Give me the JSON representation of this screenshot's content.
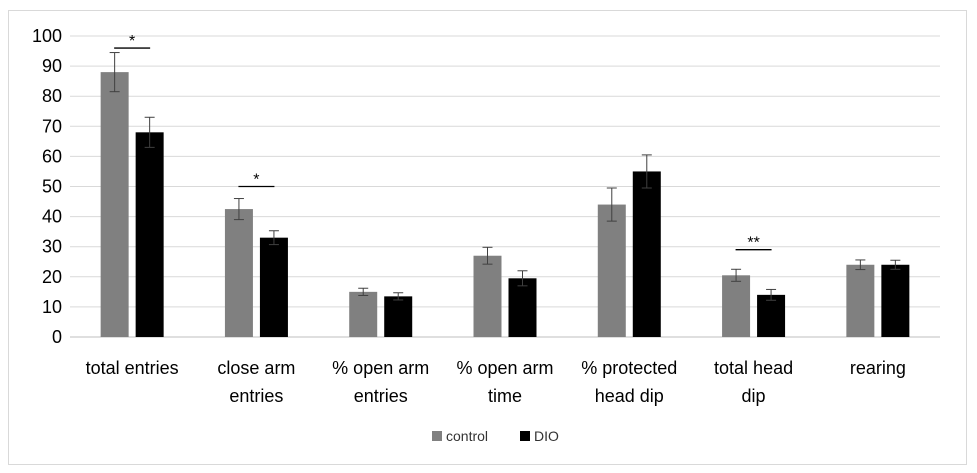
{
  "chart_data": {
    "type": "bar",
    "title": "",
    "xlabel": "",
    "ylabel": "",
    "ylim": [
      0,
      100
    ],
    "yticks": [
      0,
      10,
      20,
      30,
      40,
      50,
      60,
      70,
      80,
      90,
      100
    ],
    "grid": "horizontal",
    "legend_position": "bottom",
    "categories": [
      [
        "total entries"
      ],
      [
        "close arm",
        "entries"
      ],
      [
        "% open arm",
        "entries"
      ],
      [
        "% open arm",
        "time"
      ],
      [
        "% protected",
        "head dip"
      ],
      [
        "total head",
        "dip"
      ],
      [
        "rearing"
      ]
    ],
    "series": [
      {
        "name": "control",
        "color": "#808080",
        "values": [
          88,
          42.5,
          15,
          27,
          44,
          20.5,
          24
        ],
        "errors": [
          6.5,
          3.5,
          1.2,
          2.8,
          5.5,
          2,
          1.6
        ]
      },
      {
        "name": "DIO",
        "color": "#000000",
        "values": [
          68,
          33,
          13.5,
          19.5,
          55,
          14,
          24
        ],
        "errors": [
          5,
          2.3,
          1.2,
          2.5,
          5.5,
          1.8,
          1.5
        ]
      }
    ],
    "significance": [
      {
        "category_index": 0,
        "label": "*",
        "y": 96
      },
      {
        "category_index": 1,
        "label": "*",
        "y": 50
      },
      {
        "category_index": 5,
        "label": "**",
        "y": 29
      }
    ]
  }
}
